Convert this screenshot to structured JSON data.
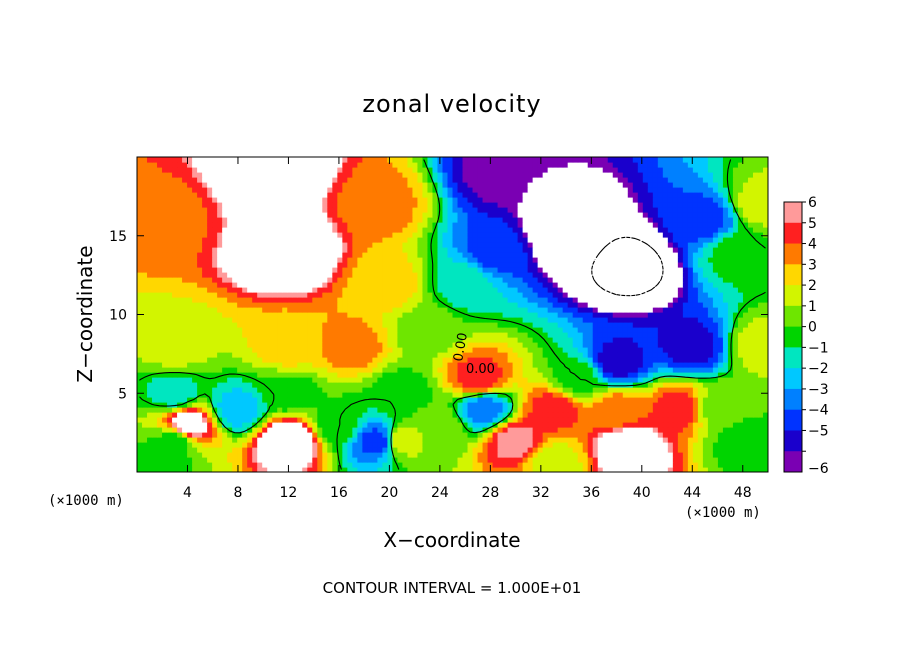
{
  "chart_data": {
    "type": "heatmap",
    "title": "zonal velocity",
    "xlabel": "X−coordinate",
    "ylabel": "Z−coordinate",
    "x_unit": "(×1000 m)",
    "y_unit": "(×1000 m)",
    "xlim": [
      0,
      50
    ],
    "ylim": [
      0,
      20
    ],
    "x_ticks": [
      4,
      8,
      12,
      16,
      20,
      24,
      28,
      32,
      36,
      40,
      44,
      48
    ],
    "y_ticks": [
      5,
      10,
      15
    ],
    "x_tick_labels": [
      "4",
      "8",
      "12",
      "16",
      "20",
      "24",
      "28",
      "32",
      "36",
      "40",
      "44",
      "48"
    ],
    "y_tick_labels": [
      "5",
      "10",
      "15"
    ],
    "colorbar": {
      "range": [
        -6,
        6
      ],
      "labels": [
        "6",
        "5",
        "4",
        "3",
        "2",
        "1",
        "0",
        "−1",
        "−2",
        "−3",
        "−4",
        "−5",
        "−6"
      ],
      "values": [
        6,
        5,
        4,
        3,
        2,
        1,
        0,
        -1,
        -2,
        -3,
        -4,
        -5,
        -6
      ],
      "out_of_range": "white"
    },
    "contour_labels": [
      "0.00",
      "0.00"
    ],
    "contour_interval": "CONTOUR INTERVAL = 1.000E+01",
    "features": [
      {
        "x": 12,
        "z": 14,
        "u": 9
      },
      {
        "x": 11,
        "z": 19,
        "u": 9
      },
      {
        "x": 2,
        "z": 16,
        "u": 4
      },
      {
        "x": 20,
        "z": 12,
        "u": 3
      },
      {
        "x": 19,
        "z": 17,
        "u": 4
      },
      {
        "x": 23,
        "z": 9,
        "u": 1
      },
      {
        "x": 26,
        "z": 12,
        "u": -1
      },
      {
        "x": 28.5,
        "z": 14,
        "u": -4
      },
      {
        "x": 29,
        "z": 19,
        "u": -6
      },
      {
        "x": 39,
        "z": 13,
        "u": -11
      },
      {
        "x": 34,
        "z": 15,
        "u": -9
      },
      {
        "x": 38,
        "z": 7,
        "u": -5
      },
      {
        "x": 44,
        "z": 8,
        "u": -5
      },
      {
        "x": 45,
        "z": 16,
        "u": -4
      },
      {
        "x": 47.5,
        "z": 14,
        "u": 0
      },
      {
        "x": 49.5,
        "z": 17,
        "u": 2
      },
      {
        "x": 49.5,
        "z": 8,
        "u": 2
      },
      {
        "x": 3,
        "z": 8,
        "u": 2
      },
      {
        "x": 12,
        "z": 8,
        "u": 3
      },
      {
        "x": 17,
        "z": 8,
        "u": 4
      },
      {
        "x": 3,
        "z": 5,
        "u": -1
      },
      {
        "x": 3,
        "z": 2,
        "u": 0
      },
      {
        "x": 4,
        "z": 3,
        "u": 7
      },
      {
        "x": 8,
        "z": 4,
        "u": -2
      },
      {
        "x": 12,
        "z": 5,
        "u": 0
      },
      {
        "x": 12,
        "z": 2,
        "u": 8
      },
      {
        "x": 16,
        "z": 3,
        "u": 0
      },
      {
        "x": 19,
        "z": 2,
        "u": -4
      },
      {
        "x": 21,
        "z": 5,
        "u": 0
      },
      {
        "x": 24,
        "z": 3,
        "u": 1
      },
      {
        "x": 27,
        "z": 6,
        "u": 5
      },
      {
        "x": 27.5,
        "z": 4,
        "u": -3
      },
      {
        "x": 30,
        "z": 2,
        "u": 6
      },
      {
        "x": 33,
        "z": 4,
        "u": 5
      },
      {
        "x": 38,
        "z": 4,
        "u": 4
      },
      {
        "x": 43,
        "z": 4,
        "u": 5
      },
      {
        "x": 39,
        "z": 1.5,
        "u": 8
      },
      {
        "x": 33,
        "z": 0.7,
        "u": 2
      },
      {
        "x": 46,
        "z": 4,
        "u": 1
      },
      {
        "x": 48,
        "z": 2,
        "u": 0
      },
      {
        "x": 35,
        "z": 6,
        "u": 0
      },
      {
        "x": 21,
        "z": 2,
        "u": 2
      },
      {
        "x": 2,
        "z": 0.8,
        "u": 0
      }
    ]
  }
}
